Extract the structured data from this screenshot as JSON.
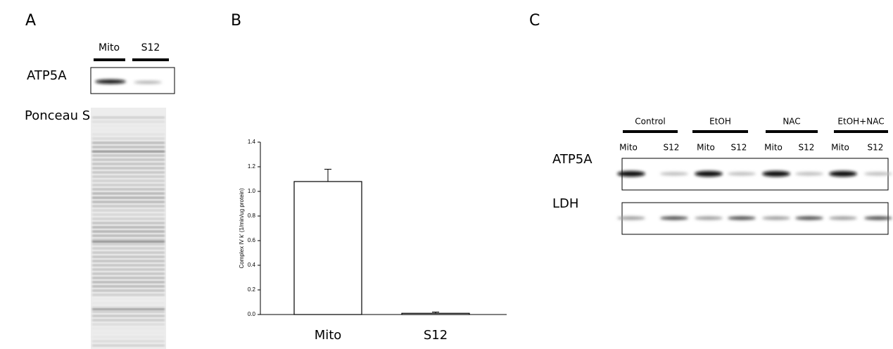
{
  "panel_labels": [
    "A",
    "B",
    "C"
  ],
  "panel_a": {
    "lanes": [
      "Mito",
      "S12"
    ],
    "blot_label": "ATP5A",
    "stain_label": "Ponceau S"
  },
  "chart_data": {
    "type": "bar",
    "categories": [
      "Mito",
      "S12"
    ],
    "values": [
      1.08,
      0.01
    ],
    "errors": [
      0.1,
      0.01
    ],
    "y_label": "Complex IV k' (1/min/ug protein)",
    "color": "#ffffff",
    "ylim": [
      0,
      1.4
    ],
    "yticks": [
      {
        "value": 0,
        "label": "0.0"
      },
      0.2,
      0.4,
      0.6,
      0.8,
      {
        "value": 1,
        "label": "1.0"
      },
      1.2,
      1.4
    ]
  },
  "panel_c": {
    "groups": [
      "Control",
      "EtOH",
      "NAC",
      "EtOH+NAC"
    ],
    "lanes": [
      "Mito",
      "S12",
      "Mito",
      "S12",
      "Mito",
      "S12",
      "Mito",
      "S12"
    ],
    "blots": [
      "ATP5A",
      "LDH"
    ]
  }
}
